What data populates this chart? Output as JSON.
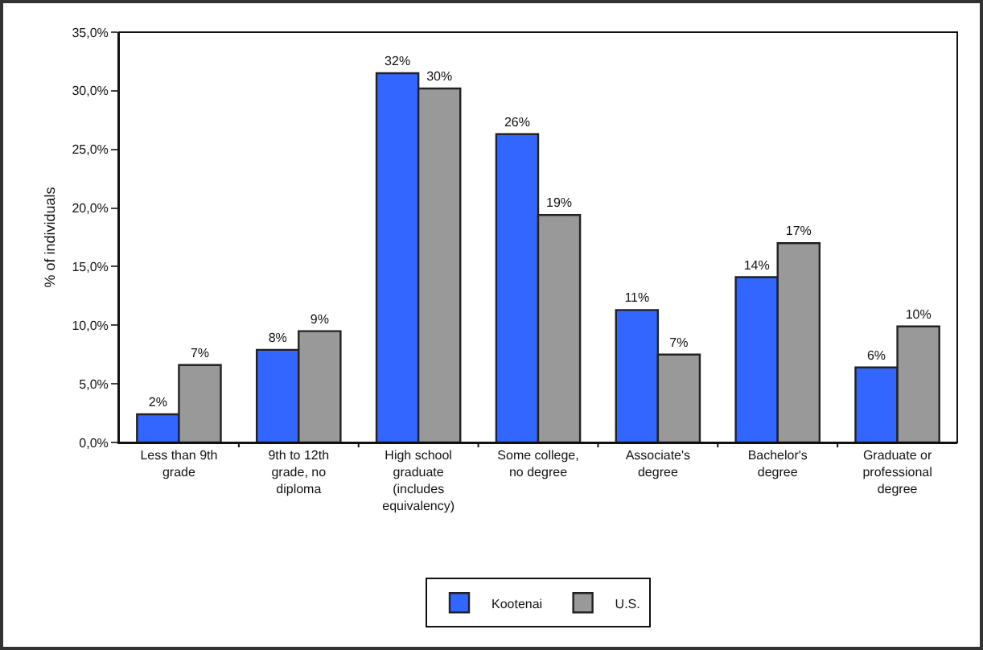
{
  "chart_data": {
    "type": "bar",
    "ylabel": "% of individuals",
    "categories": [
      "Less than 9th grade",
      "9th to 12th grade, no diploma",
      "High school graduate (includes equivalency)",
      "Some college, no degree",
      "Associate's degree",
      "Bachelor's degree",
      "Graduate or professional degree"
    ],
    "series": [
      {
        "name": "Kootenai",
        "color": "#3366ff",
        "values": [
          2.4,
          7.9,
          31.5,
          26.3,
          11.3,
          14.1,
          6.4
        ],
        "value_labels": [
          "2%",
          "8%",
          "32%",
          "26%",
          "11%",
          "14%",
          "6%"
        ]
      },
      {
        "name": "U.S.",
        "color": "#999999",
        "values": [
          6.6,
          9.5,
          30.2,
          19.4,
          7.5,
          17.0,
          9.9
        ],
        "value_labels": [
          "7%",
          "9%",
          "30%",
          "19%",
          "7%",
          "17%",
          "10%"
        ]
      }
    ],
    "ylim": [
      0,
      35
    ],
    "yticks": [
      {
        "value": 0,
        "label": "0,0%"
      },
      {
        "value": 5,
        "label": "5,0%"
      },
      {
        "value": 10,
        "label": "10,0%"
      },
      {
        "value": 15,
        "label": "15,0%"
      },
      {
        "value": 20,
        "label": "20,0%"
      },
      {
        "value": 25,
        "label": "25,0%"
      },
      {
        "value": 30,
        "label": "30,0%"
      },
      {
        "value": 35,
        "label": "35,0%"
      }
    ],
    "grid": false,
    "legend": "bottom"
  }
}
